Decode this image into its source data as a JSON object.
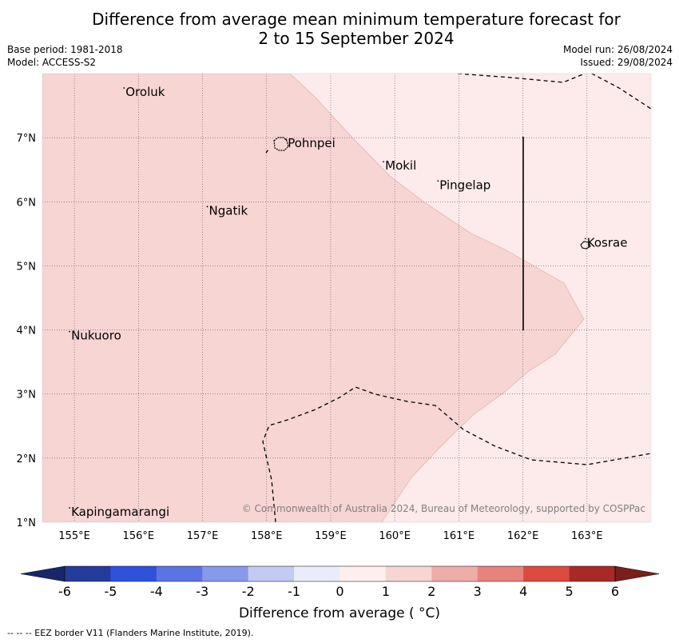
{
  "header": {
    "title_line1": "Difference from average mean minimum temperature forecast for",
    "title_line2": "2 to 15 September 2024",
    "base_period": "Base period: 1981-2018",
    "model": "Model: ACCESS-S2",
    "model_run": "Model run: 26/08/2024",
    "issued": "Issued: 29/08/2024"
  },
  "map": {
    "lon_range": [
      154.5,
      164.0
    ],
    "lat_range": [
      1.0,
      8.0
    ],
    "lon_ticks": [
      155,
      156,
      157,
      158,
      159,
      160,
      161,
      162,
      163
    ],
    "lat_ticks": [
      1,
      2,
      3,
      4,
      5,
      6,
      7
    ],
    "lon_tick_labels": [
      "155°E",
      "156°E",
      "157°E",
      "158°E",
      "159°E",
      "160°E",
      "161°E",
      "162°E",
      "163°E"
    ],
    "lat_tick_labels": [
      "1°N",
      "2°N",
      "3°N",
      "4°N",
      "5°N",
      "6°N",
      "7°N"
    ],
    "fill_colors": {
      "band_1_2": "#f6d5d3",
      "band_0_1": "#fcebea"
    },
    "places": [
      {
        "name": "Oroluk",
        "lon": 155.8,
        "lat": 7.65
      },
      {
        "name": "Pohnpei",
        "lon": 158.33,
        "lat": 6.85
      },
      {
        "name": "Mokil",
        "lon": 159.85,
        "lat": 6.5
      },
      {
        "name": "Pingelap",
        "lon": 160.7,
        "lat": 6.2
      },
      {
        "name": "Ngatik",
        "lon": 157.1,
        "lat": 5.8
      },
      {
        "name": "Kosrae",
        "lon": 163.0,
        "lat": 5.3
      },
      {
        "name": "Nukuoro",
        "lon": 154.95,
        "lat": 3.85
      },
      {
        "name": "Kapingamarangi",
        "lon": 154.95,
        "lat": 1.1
      }
    ],
    "copyright": "© Commonwealth of Australia 2024, Bureau of Meteorology, supported by COSPPac"
  },
  "colorbar": {
    "ticks": [
      "-6",
      "-5",
      "-4",
      "-3",
      "-2",
      "-1",
      "0",
      "1",
      "2",
      "3",
      "4",
      "5",
      "6"
    ],
    "colors": [
      "#253c9c",
      "#2f52dc",
      "#5b74e3",
      "#8799ea",
      "#c3caf4",
      "#eaecfb",
      "#fdefee",
      "#f6d5d3",
      "#efaca9",
      "#e8827d",
      "#dc4a40",
      "#a82925"
    ],
    "extend_low": "#18276b",
    "extend_high": "#7a1f1b",
    "label": "Difference from average ( °C)"
  },
  "footer": {
    "eez_note": "--  --  -- EEZ border V11 (Flanders Marine Institute, 2019)."
  }
}
